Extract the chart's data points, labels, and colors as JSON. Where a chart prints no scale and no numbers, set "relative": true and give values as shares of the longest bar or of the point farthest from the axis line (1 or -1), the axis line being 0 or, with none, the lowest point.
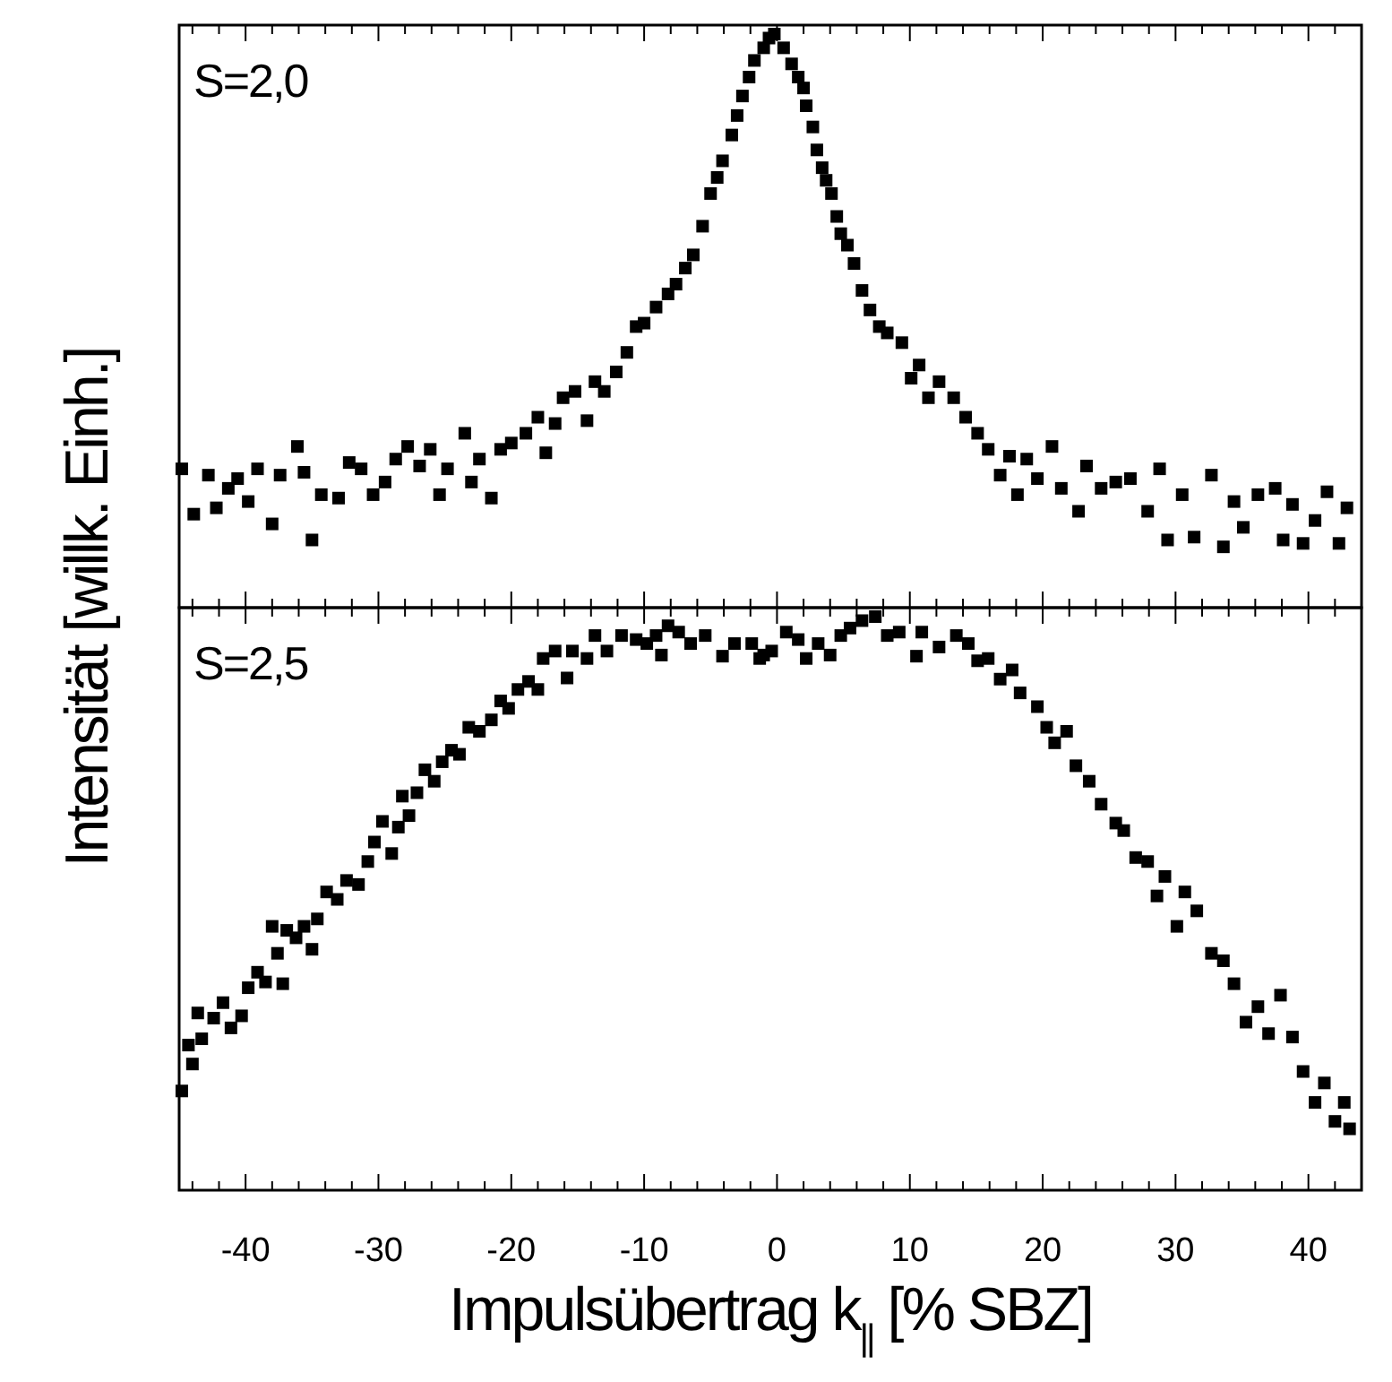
{
  "chart_data": [
    {
      "type": "scatter",
      "ylabel": "Intensität [willk. Einh.]",
      "annotations": [
        "S=2,0"
      ],
      "relative": true,
      "marker": "square",
      "tick_labels": false,
      "xlim": [
        -45,
        44
      ],
      "xticks": [
        -40,
        -30,
        -20,
        -10,
        0,
        10,
        20,
        30,
        40,
        {
          "value": -44,
          "label": null
        },
        {
          "value": -42,
          "label": null
        },
        {
          "value": -38,
          "label": null
        },
        {
          "value": -36,
          "label": null
        },
        {
          "value": -34,
          "label": null
        },
        {
          "value": -32,
          "label": null
        },
        {
          "value": -28,
          "label": null
        },
        {
          "value": -26,
          "label": null
        },
        {
          "value": -24,
          "label": null
        },
        {
          "value": -22,
          "label": null
        },
        {
          "value": -18,
          "label": null
        },
        {
          "value": -16,
          "label": null
        },
        {
          "value": -14,
          "label": null
        },
        {
          "value": -12,
          "label": null
        },
        {
          "value": -8,
          "label": null
        },
        {
          "value": -6,
          "label": null
        },
        {
          "value": -4,
          "label": null
        },
        {
          "value": -2,
          "label": null
        },
        {
          "value": 2,
          "label": null
        },
        {
          "value": 4,
          "label": null
        },
        {
          "value": 6,
          "label": null
        },
        {
          "value": 8,
          "label": null
        },
        {
          "value": 12,
          "label": null
        },
        {
          "value": 14,
          "label": null
        },
        {
          "value": 16,
          "label": null
        },
        {
          "value": 18,
          "label": null
        },
        {
          "value": 22,
          "label": null
        },
        {
          "value": 24,
          "label": null
        },
        {
          "value": 26,
          "label": null
        },
        {
          "value": 28,
          "label": null
        },
        {
          "value": 32,
          "label": null
        },
        {
          "value": 34,
          "label": null
        },
        {
          "value": 36,
          "label": null
        },
        {
          "value": 38,
          "label": null
        },
        {
          "value": 42,
          "label": null
        }
      ],
      "series": [
        {
          "color": "#000000",
          "x": [
            -44.8,
            -43.9,
            -42.8,
            -42.2,
            -41.3,
            -40.6,
            -39.8,
            -39.1,
            -38.0,
            -37.4,
            -36.1,
            -35.6,
            -35.0,
            -34.3,
            -33.0,
            -32.2,
            -31.3,
            -30.4,
            -29.5,
            -28.7,
            -27.8,
            -26.9,
            -26.1,
            -25.4,
            -24.8,
            -23.5,
            -23.0,
            -22.4,
            -21.5,
            -20.8,
            -20.0,
            -18.9,
            -18.0,
            -17.4,
            -16.7,
            -16.1,
            -15.2,
            -14.3,
            -13.7,
            -13.0,
            -12.1,
            -11.3,
            -10.6,
            -10.0,
            -9.1,
            -8.2,
            -7.6,
            -6.9,
            -6.3,
            -5.6,
            -5.0,
            -4.5,
            -4.1,
            -3.4,
            -3.0,
            -2.6,
            -2.1,
            -1.7,
            -1.0,
            -0.6,
            -0.2,
            0.5,
            1.1,
            1.6,
            2.0,
            2.2,
            2.7,
            3.0,
            3.4,
            3.7,
            4.1,
            4.5,
            4.8,
            5.3,
            5.8,
            6.4,
            7.0,
            7.7,
            8.3,
            9.4,
            10.1,
            10.7,
            11.4,
            12.2,
            13.3,
            14.2,
            15.1,
            15.9,
            16.8,
            17.5,
            18.1,
            18.8,
            19.6,
            20.7,
            21.4,
            22.7,
            23.3,
            24.4,
            25.5,
            26.6,
            27.9,
            28.8,
            29.4,
            30.5,
            31.4,
            32.7,
            33.6,
            34.4,
            35.1,
            36.2,
            37.5,
            38.1,
            38.8,
            39.6,
            40.5,
            41.4,
            42.3,
            42.9
          ],
          "values": [
            0.242,
            0.163,
            0.231,
            0.174,
            0.208,
            0.225,
            0.185,
            0.242,
            0.146,
            0.231,
            0.281,
            0.236,
            0.118,
            0.197,
            0.191,
            0.253,
            0.242,
            0.197,
            0.219,
            0.259,
            0.281,
            0.247,
            0.276,
            0.197,
            0.242,
            0.304,
            0.219,
            0.259,
            0.191,
            0.276,
            0.287,
            0.304,
            0.332,
            0.27,
            0.321,
            0.366,
            0.377,
            0.326,
            0.394,
            0.377,
            0.411,
            0.445,
            0.49,
            0.496,
            0.524,
            0.547,
            0.564,
            0.592,
            0.615,
            0.665,
            0.722,
            0.75,
            0.779,
            0.824,
            0.858,
            0.892,
            0.925,
            0.954,
            0.976,
            0.993,
            1,
            0.976,
            0.948,
            0.925,
            0.906,
            0.875,
            0.838,
            0.798,
            0.767,
            0.745,
            0.722,
            0.682,
            0.652,
            0.632,
            0.6,
            0.553,
            0.519,
            0.49,
            0.479,
            0.462,
            0.4,
            0.423,
            0.366,
            0.394,
            0.366,
            0.332,
            0.304,
            0.276,
            0.231,
            0.264,
            0.197,
            0.259,
            0.225,
            0.281,
            0.208,
            0.168,
            0.247,
            0.208,
            0.219,
            0.225,
            0.168,
            0.242,
            0.118,
            0.197,
            0.123,
            0.231,
            0.106,
            0.185,
            0.14,
            0.197,
            0.208,
            0.118,
            0.18,
            0.112,
            0.152,
            0.202,
            0.112,
            0.174
          ]
        }
      ]
    },
    {
      "type": "scatter",
      "xlabel": "Impulsübertrag k$_{||}$ [% SBZ]",
      "annotations": [
        "S=2,5"
      ],
      "relative": true,
      "marker": "square",
      "tick_labels": "x",
      "xlim": [
        -45,
        44
      ],
      "xticks": [
        -40,
        -30,
        -20,
        -10,
        0,
        10,
        20,
        30,
        40,
        {
          "value": -44,
          "label": null
        },
        {
          "value": -42,
          "label": null
        },
        {
          "value": -38,
          "label": null
        },
        {
          "value": -36,
          "label": null
        },
        {
          "value": -34,
          "label": null
        },
        {
          "value": -32,
          "label": null
        },
        {
          "value": -28,
          "label": null
        },
        {
          "value": -26,
          "label": null
        },
        {
          "value": -24,
          "label": null
        },
        {
          "value": -22,
          "label": null
        },
        {
          "value": -18,
          "label": null
        },
        {
          "value": -16,
          "label": null
        },
        {
          "value": -14,
          "label": null
        },
        {
          "value": -12,
          "label": null
        },
        {
          "value": -8,
          "label": null
        },
        {
          "value": -6,
          "label": null
        },
        {
          "value": -4,
          "label": null
        },
        {
          "value": -2,
          "label": null
        },
        {
          "value": 2,
          "label": null
        },
        {
          "value": 4,
          "label": null
        },
        {
          "value": 6,
          "label": null
        },
        {
          "value": 8,
          "label": null
        },
        {
          "value": 12,
          "label": null
        },
        {
          "value": 14,
          "label": null
        },
        {
          "value": 16,
          "label": null
        },
        {
          "value": 18,
          "label": null
        },
        {
          "value": 22,
          "label": null
        },
        {
          "value": 24,
          "label": null
        },
        {
          "value": 26,
          "label": null
        },
        {
          "value": 28,
          "label": null
        },
        {
          "value": 32,
          "label": null
        },
        {
          "value": 34,
          "label": null
        },
        {
          "value": 36,
          "label": null
        },
        {
          "value": 38,
          "label": null
        },
        {
          "value": 42,
          "label": null
        }
      ],
      "series": [
        {
          "color": "#000000",
          "x": [
            -44.8,
            -44.3,
            -44.0,
            -43.6,
            -43.3,
            -42.4,
            -41.7,
            -41.1,
            -40.3,
            -39.8,
            -39.1,
            -38.5,
            -38.0,
            -37.6,
            -37.2,
            -36.9,
            -36.2,
            -35.6,
            -35.0,
            -34.6,
            -33.9,
            -33.1,
            -32.4,
            -31.5,
            -30.8,
            -30.3,
            -29.7,
            -29.0,
            -28.5,
            -28.2,
            -27.7,
            -27.1,
            -26.5,
            -25.8,
            -25.2,
            -24.5,
            -23.9,
            -23.2,
            -22.4,
            -21.5,
            -20.8,
            -20.2,
            -19.5,
            -18.7,
            -18.0,
            -17.6,
            -16.7,
            -15.8,
            -15.4,
            -14.3,
            -13.7,
            -12.8,
            -11.7,
            -10.6,
            -9.8,
            -9.1,
            -8.7,
            -8.2,
            -7.4,
            -6.5,
            -5.4,
            -4.1,
            -3.2,
            -1.9,
            -1.3,
            -1.0,
            -0.4,
            0.7,
            1.6,
            2.2,
            3.1,
            4.0,
            4.8,
            5.5,
            6.4,
            7.4,
            8.3,
            9.2,
            10.5,
            10.9,
            12.2,
            13.5,
            14.4,
            15.1,
            15.9,
            16.8,
            17.7,
            18.3,
            19.6,
            20.3,
            20.9,
            21.8,
            22.5,
            23.5,
            24.4,
            25.5,
            26.1,
            27.0,
            27.9,
            28.6,
            29.2,
            30.1,
            30.7,
            31.6,
            32.7,
            33.6,
            34.4,
            35.3,
            36.2,
            37.0,
            37.9,
            38.8,
            39.6,
            40.5,
            41.2,
            42.0,
            42.7,
            43.1
          ],
          "values": [
            0.173,
            0.253,
            0.22,
            0.309,
            0.264,
            0.3,
            0.327,
            0.283,
            0.304,
            0.353,
            0.38,
            0.363,
            0.46,
            0.413,
            0.36,
            0.453,
            0.44,
            0.46,
            0.42,
            0.473,
            0.52,
            0.507,
            0.54,
            0.533,
            0.573,
            0.607,
            0.643,
            0.587,
            0.633,
            0.687,
            0.653,
            0.693,
            0.733,
            0.713,
            0.747,
            0.767,
            0.76,
            0.807,
            0.8,
            0.82,
            0.853,
            0.84,
            0.873,
            0.887,
            0.873,
            0.927,
            0.94,
            0.893,
            0.94,
            0.927,
            0.967,
            0.94,
            0.967,
            0.96,
            0.953,
            0.967,
            0.933,
            0.984,
            0.973,
            0.953,
            0.967,
            0.931,
            0.953,
            0.953,
            0.927,
            0.933,
            0.94,
            0.973,
            0.96,
            0.927,
            0.953,
            0.933,
            0.967,
            0.98,
            0.993,
            1,
            0.967,
            0.973,
            0.931,
            0.973,
            0.947,
            0.967,
            0.953,
            0.923,
            0.927,
            0.891,
            0.907,
            0.867,
            0.843,
            0.807,
            0.78,
            0.8,
            0.74,
            0.713,
            0.673,
            0.64,
            0.627,
            0.58,
            0.573,
            0.513,
            0.547,
            0.46,
            0.52,
            0.487,
            0.413,
            0.4,
            0.36,
            0.293,
            0.32,
            0.273,
            0.34,
            0.267,
            0.207,
            0.153,
            0.187,
            0.12,
            0.153,
            0.107
          ]
        }
      ]
    }
  ]
}
